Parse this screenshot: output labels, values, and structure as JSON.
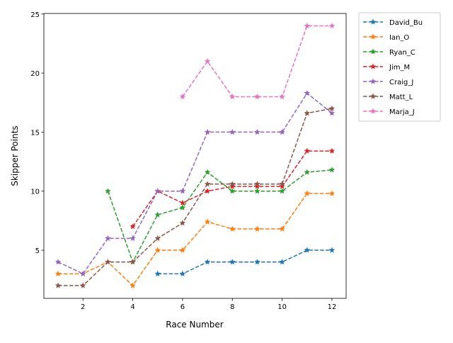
{
  "chart_data": {
    "type": "line",
    "title": "",
    "xlabel": "Race Number",
    "ylabel": "Skipper Points",
    "xlim": [
      0.43,
      12.57
    ],
    "ylim": [
      0.92,
      25.05
    ],
    "xticks": [
      2,
      4,
      6,
      8,
      10,
      12
    ],
    "yticks": [
      5,
      10,
      15,
      20,
      25
    ],
    "grid": false,
    "legend_placement": "outside-top-right",
    "line_style": "dashed",
    "marker": "star",
    "series": [
      {
        "name": "David_Bu",
        "color": "#1f77b4",
        "x": [
          5,
          6,
          7,
          8,
          9,
          10,
          11,
          12
        ],
        "y": [
          3,
          3,
          4,
          4,
          4,
          4,
          5,
          5
        ]
      },
      {
        "name": "Ian_O",
        "color": "#ff7f0e",
        "x": [
          1,
          2,
          3,
          4,
          5,
          6,
          7,
          8,
          9,
          10,
          11,
          12
        ],
        "y": [
          3,
          3,
          4,
          2,
          5,
          5,
          7.4,
          6.8,
          6.8,
          6.8,
          9.8,
          9.8
        ]
      },
      {
        "name": "Ryan_C",
        "color": "#2ca02c",
        "x": [
          3,
          4,
          5,
          6,
          7,
          8,
          9,
          10,
          11,
          12
        ],
        "y": [
          10,
          4,
          8,
          8.6,
          11.6,
          10,
          10,
          10,
          11.6,
          11.8
        ]
      },
      {
        "name": "Jim_M",
        "color": "#d62728",
        "x": [
          4,
          5,
          6,
          7,
          8,
          9,
          10,
          11,
          12
        ],
        "y": [
          7,
          10,
          9,
          10,
          10.4,
          10.4,
          10.4,
          13.4,
          13.4
        ]
      },
      {
        "name": "Craig_J",
        "color": "#9467bd",
        "x": [
          1,
          2,
          3,
          4,
          5,
          6,
          7,
          8,
          9,
          10,
          11,
          12
        ],
        "y": [
          4,
          3,
          6,
          6,
          10,
          10,
          15,
          15,
          15,
          15,
          18.3,
          16.6
        ]
      },
      {
        "name": "Matt_L",
        "color": "#8c564b",
        "x": [
          1,
          2,
          3,
          4,
          5,
          6,
          7,
          8,
          9,
          10,
          11,
          12
        ],
        "y": [
          2,
          2,
          4,
          4,
          6,
          7.3,
          10.6,
          10.6,
          10.6,
          10.6,
          16.6,
          17
        ]
      },
      {
        "name": "Marja_J",
        "color": "#e377c2",
        "x": [
          6,
          7,
          8,
          9,
          10,
          11,
          12
        ],
        "y": [
          18,
          21,
          18,
          18,
          18,
          24,
          24
        ]
      }
    ]
  }
}
